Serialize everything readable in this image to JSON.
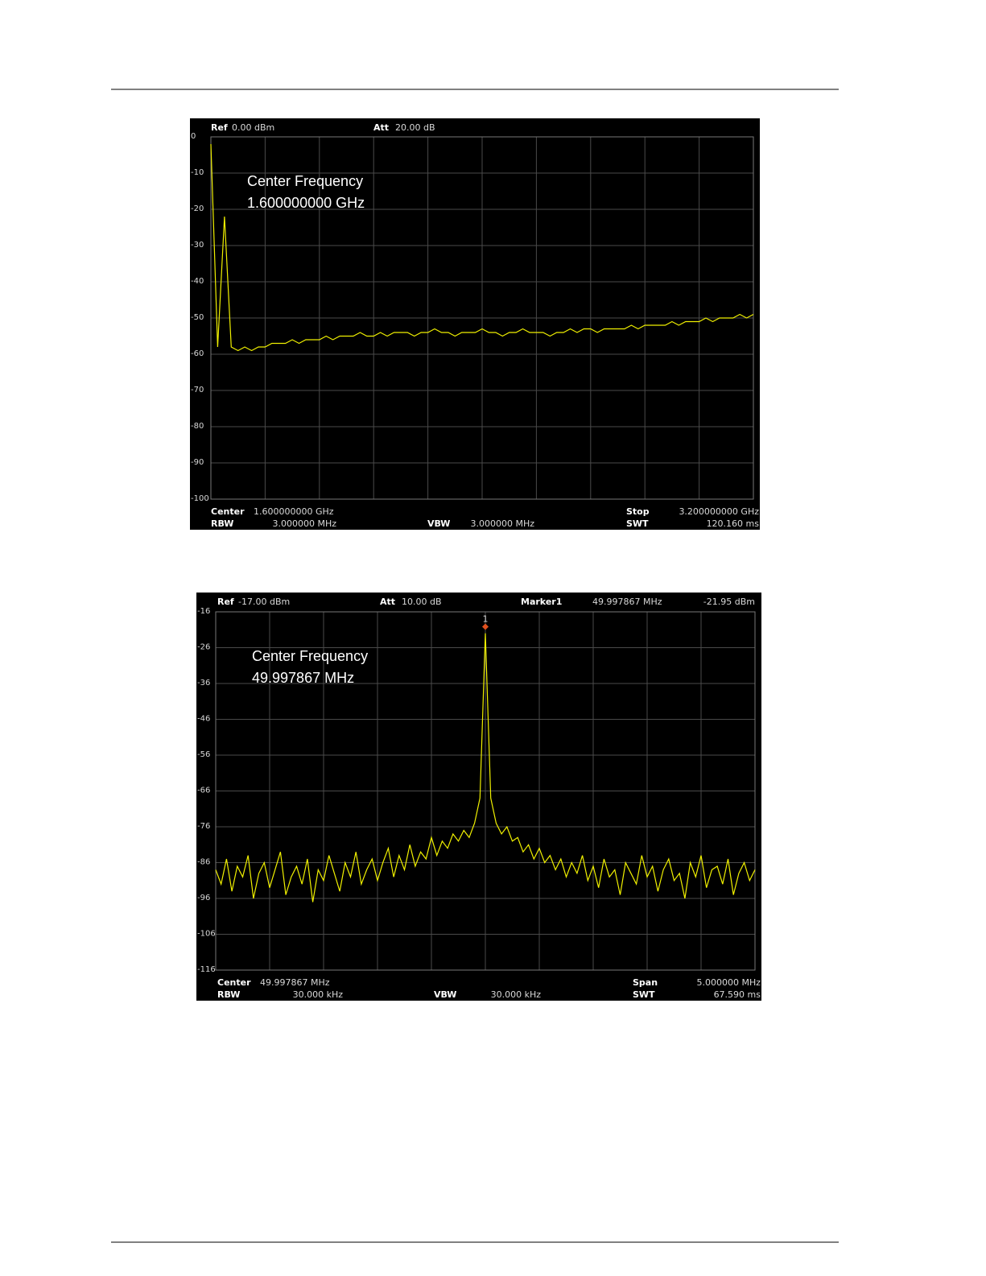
{
  "chart_data": [
    {
      "type": "line",
      "header": [
        {
          "label": "Ref",
          "value": "0.00 dBm"
        },
        {
          "label": "Att",
          "value": "20.00 dB"
        }
      ],
      "annotation": [
        "Center Frequency",
        "1.600000000 GHz"
      ],
      "footer": [
        {
          "label": "Center",
          "value": "1.600000000 GHz"
        },
        {
          "label": "Stop",
          "value": "3.200000000 GHz"
        },
        {
          "label": "RBW",
          "value": "3.000000 MHz"
        },
        {
          "label": "VBW",
          "value": "3.000000 MHz"
        },
        {
          "label": "SWT",
          "value": "120.160 ms"
        }
      ],
      "ylim": [
        -100,
        0
      ],
      "yticks": [
        0,
        -10,
        -20,
        -30,
        -40,
        -50,
        -60,
        -70,
        -80,
        -90,
        -100
      ],
      "grid": true,
      "color": "#f0f000",
      "values": [
        -2,
        -58,
        -22,
        -58,
        -59,
        -58,
        -59,
        -58,
        -58,
        -57,
        -57,
        -57,
        -56,
        -57,
        -56,
        -56,
        -56,
        -55,
        -56,
        -55,
        -55,
        -55,
        -54,
        -55,
        -55,
        -54,
        -55,
        -54,
        -54,
        -54,
        -55,
        -54,
        -54,
        -53,
        -54,
        -54,
        -55,
        -54,
        -54,
        -54,
        -53,
        -54,
        -54,
        -55,
        -54,
        -54,
        -53,
        -54,
        -54,
        -54,
        -55,
        -54,
        -54,
        -53,
        -54,
        -53,
        -53,
        -54,
        -53,
        -53,
        -53,
        -53,
        -52,
        -53,
        -52,
        -52,
        -52,
        -52,
        -51,
        -52,
        -51,
        -51,
        -51,
        -50,
        -51,
        -50,
        -50,
        -50,
        -49,
        -50,
        -49
      ]
    },
    {
      "type": "line",
      "header": [
        {
          "label": "Ref",
          "value": "-17.00 dBm"
        },
        {
          "label": "Att",
          "value": "10.00 dB"
        }
      ],
      "marker": {
        "name": "Marker1",
        "number": "1",
        "frequency": "49.997867 MHz",
        "value": -21.95,
        "value_label": "-21.95 dBm",
        "color": "#e0501e"
      },
      "annotation": [
        "Center Frequency",
        "49.997867 MHz"
      ],
      "footer": [
        {
          "label": "Center",
          "value": "49.997867 MHz"
        },
        {
          "label": "Span",
          "value": "5.000000 MHz"
        },
        {
          "label": "RBW",
          "value": "30.000 kHz"
        },
        {
          "label": "VBW",
          "value": "30.000 kHz"
        },
        {
          "label": "SWT",
          "value": "67.590 ms"
        }
      ],
      "ylim": [
        -116,
        -16
      ],
      "yticks": [
        -16,
        -26,
        -36,
        -46,
        -56,
        -66,
        -76,
        -86,
        -96,
        -106,
        -116
      ],
      "grid": true,
      "color": "#f0f000",
      "values": [
        -88,
        -92,
        -85,
        -94,
        -87,
        -90,
        -84,
        -96,
        -89,
        -86,
        -93,
        -88,
        -83,
        -95,
        -90,
        -87,
        -92,
        -85,
        -97,
        -88,
        -91,
        -84,
        -89,
        -94,
        -86,
        -90,
        -83,
        -92,
        -88,
        -85,
        -91,
        -86,
        -82,
        -90,
        -84,
        -88,
        -81,
        -87,
        -83,
        -85,
        -79,
        -84,
        -80,
        -82,
        -78,
        -80,
        -77,
        -79,
        -75,
        -68,
        -22,
        -68,
        -75,
        -78,
        -76,
        -80,
        -79,
        -83,
        -81,
        -85,
        -82,
        -86,
        -84,
        -88,
        -85,
        -90,
        -86,
        -89,
        -84,
        -91,
        -87,
        -93,
        -85,
        -90,
        -88,
        -95,
        -86,
        -89,
        -92,
        -84,
        -90,
        -87,
        -94,
        -88,
        -85,
        -91,
        -89,
        -96,
        -86,
        -90,
        -84,
        -93,
        -88,
        -87,
        -92,
        -85,
        -95,
        -89,
        -86,
        -91,
        -88
      ]
    }
  ]
}
